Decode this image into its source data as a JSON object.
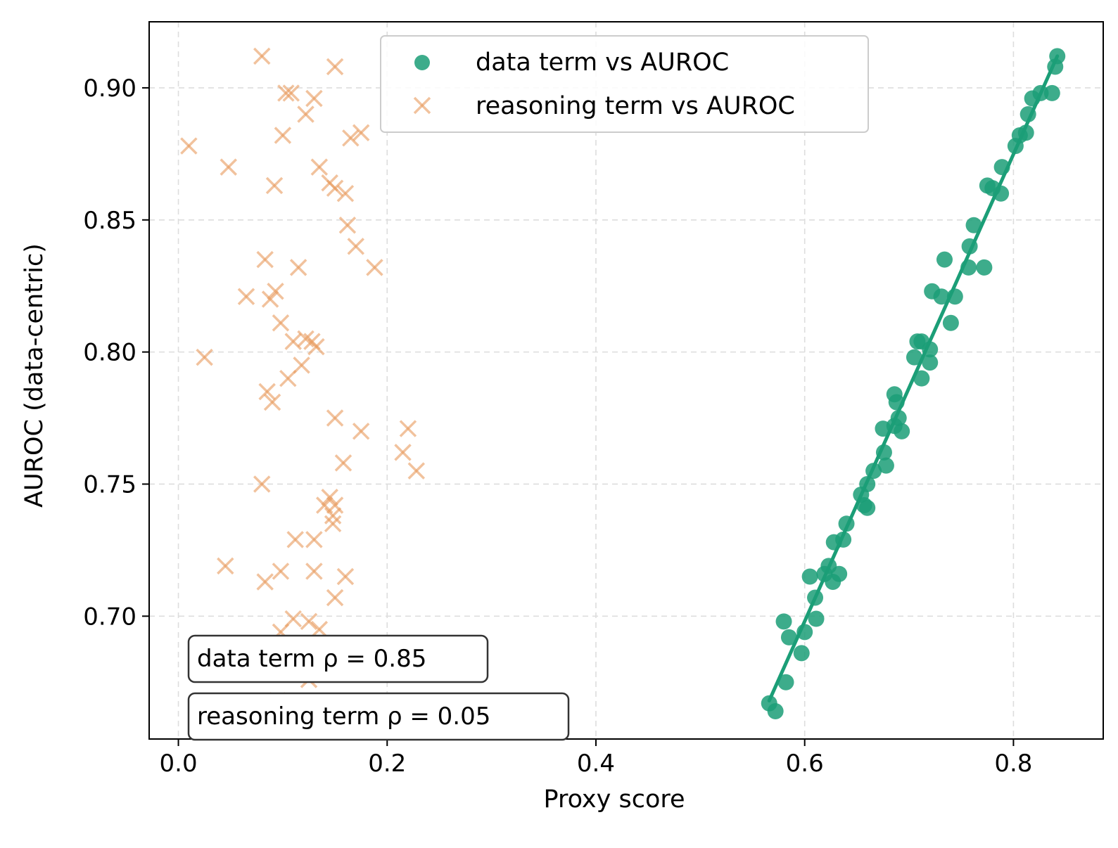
{
  "chart_data": {
    "type": "scatter",
    "title": "",
    "xlabel": "Proxy score",
    "ylabel": "AUROC (data-centric)",
    "xlim": [
      -0.028,
      0.886
    ],
    "ylim": [
      0.6535,
      0.925
    ],
    "xticks": [
      0.0,
      0.2,
      0.4,
      0.6,
      0.8
    ],
    "xtick_labels": [
      "0.0",
      "0.2",
      "0.4",
      "0.6",
      "0.8"
    ],
    "yticks": [
      0.7,
      0.75,
      0.8,
      0.85,
      0.9
    ],
    "ytick_labels": [
      "0.70",
      "0.75",
      "0.80",
      "0.85",
      "0.90"
    ],
    "grid": true,
    "legend_position": "top-center",
    "colors": {
      "data": "#1b9e77",
      "reasoning": "#e89a5b"
    },
    "series": [
      {
        "name": "data term vs AUROC",
        "marker": "circle",
        "points": [
          [
            0.842,
            0.912
          ],
          [
            0.84,
            0.908
          ],
          [
            0.837,
            0.898
          ],
          [
            0.826,
            0.898
          ],
          [
            0.818,
            0.896
          ],
          [
            0.814,
            0.89
          ],
          [
            0.812,
            0.883
          ],
          [
            0.806,
            0.882
          ],
          [
            0.802,
            0.878
          ],
          [
            0.789,
            0.87
          ],
          [
            0.788,
            0.86
          ],
          [
            0.78,
            0.862
          ],
          [
            0.775,
            0.863
          ],
          [
            0.762,
            0.848
          ],
          [
            0.758,
            0.84
          ],
          [
            0.757,
            0.832
          ],
          [
            0.772,
            0.832
          ],
          [
            0.734,
            0.835
          ],
          [
            0.744,
            0.821
          ],
          [
            0.722,
            0.823
          ],
          [
            0.731,
            0.821
          ],
          [
            0.74,
            0.811
          ],
          [
            0.708,
            0.804
          ],
          [
            0.712,
            0.804
          ],
          [
            0.72,
            0.801
          ],
          [
            0.705,
            0.798
          ],
          [
            0.72,
            0.796
          ],
          [
            0.712,
            0.79
          ],
          [
            0.686,
            0.784
          ],
          [
            0.688,
            0.781
          ],
          [
            0.69,
            0.775
          ],
          [
            0.686,
            0.772
          ],
          [
            0.693,
            0.77
          ],
          [
            0.675,
            0.771
          ],
          [
            0.676,
            0.762
          ],
          [
            0.678,
            0.757
          ],
          [
            0.666,
            0.755
          ],
          [
            0.66,
            0.75
          ],
          [
            0.654,
            0.746
          ],
          [
            0.657,
            0.742
          ],
          [
            0.66,
            0.741
          ],
          [
            0.64,
            0.735
          ],
          [
            0.637,
            0.729
          ],
          [
            0.628,
            0.728
          ],
          [
            0.623,
            0.719
          ],
          [
            0.633,
            0.716
          ],
          [
            0.619,
            0.716
          ],
          [
            0.627,
            0.713
          ],
          [
            0.605,
            0.715
          ],
          [
            0.61,
            0.707
          ],
          [
            0.58,
            0.698
          ],
          [
            0.611,
            0.699
          ],
          [
            0.6,
            0.694
          ],
          [
            0.585,
            0.692
          ],
          [
            0.597,
            0.686
          ],
          [
            0.582,
            0.675
          ],
          [
            0.566,
            0.667
          ],
          [
            0.572,
            0.664
          ]
        ]
      },
      {
        "name": "reasoning term vs AUROC",
        "marker": "x",
        "points": [
          [
            0.08,
            0.912
          ],
          [
            0.15,
            0.908
          ],
          [
            0.103,
            0.898
          ],
          [
            0.108,
            0.898
          ],
          [
            0.13,
            0.896
          ],
          [
            0.122,
            0.89
          ],
          [
            0.01,
            0.878
          ],
          [
            0.1,
            0.882
          ],
          [
            0.165,
            0.881
          ],
          [
            0.175,
            0.883
          ],
          [
            0.048,
            0.87
          ],
          [
            0.135,
            0.87
          ],
          [
            0.092,
            0.863
          ],
          [
            0.145,
            0.864
          ],
          [
            0.15,
            0.862
          ],
          [
            0.16,
            0.86
          ],
          [
            0.162,
            0.848
          ],
          [
            0.17,
            0.84
          ],
          [
            0.188,
            0.832
          ],
          [
            0.083,
            0.835
          ],
          [
            0.115,
            0.832
          ],
          [
            0.065,
            0.821
          ],
          [
            0.088,
            0.82
          ],
          [
            0.093,
            0.823
          ],
          [
            0.098,
            0.811
          ],
          [
            0.122,
            0.805
          ],
          [
            0.128,
            0.804
          ],
          [
            0.132,
            0.802
          ],
          [
            0.11,
            0.804
          ],
          [
            0.025,
            0.798
          ],
          [
            0.118,
            0.795
          ],
          [
            0.105,
            0.79
          ],
          [
            0.085,
            0.785
          ],
          [
            0.09,
            0.781
          ],
          [
            0.15,
            0.775
          ],
          [
            0.175,
            0.77
          ],
          [
            0.22,
            0.771
          ],
          [
            0.215,
            0.762
          ],
          [
            0.158,
            0.758
          ],
          [
            0.228,
            0.755
          ],
          [
            0.08,
            0.75
          ],
          [
            0.145,
            0.745
          ],
          [
            0.14,
            0.742
          ],
          [
            0.15,
            0.742
          ],
          [
            0.148,
            0.738
          ],
          [
            0.148,
            0.735
          ],
          [
            0.112,
            0.729
          ],
          [
            0.13,
            0.729
          ],
          [
            0.045,
            0.719
          ],
          [
            0.098,
            0.717
          ],
          [
            0.13,
            0.717
          ],
          [
            0.16,
            0.715
          ],
          [
            0.083,
            0.713
          ],
          [
            0.15,
            0.707
          ],
          [
            0.11,
            0.699
          ],
          [
            0.125,
            0.698
          ],
          [
            0.098,
            0.694
          ],
          [
            0.135,
            0.695
          ],
          [
            0.13,
            0.689
          ],
          [
            0.125,
            0.676
          ],
          [
            0.095,
            0.668
          ],
          [
            0.145,
            0.666
          ]
        ]
      }
    ],
    "fit_line": {
      "series": "data term vs AUROC",
      "from": [
        0.566,
        0.668
      ],
      "to": [
        0.842,
        0.912
      ]
    },
    "annotations": [
      "data term ρ = 0.85",
      "reasoning term ρ = 0.05"
    ]
  }
}
